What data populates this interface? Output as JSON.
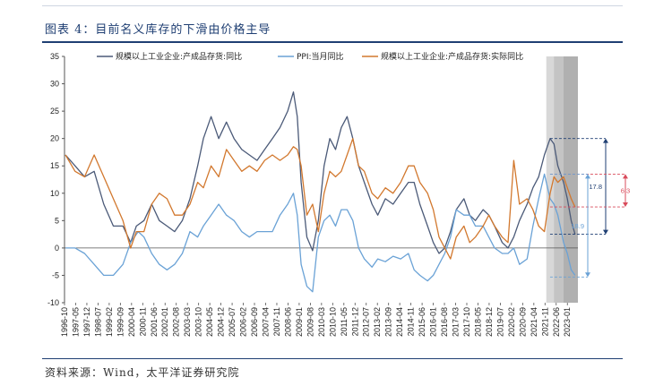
{
  "title": "图表 4：目前名义库存的下滑由价格主导",
  "source": "资料来源：Wind，太平洋证券研究院",
  "chart_data": {
    "type": "line",
    "ylim": [
      -10,
      35
    ],
    "yticks": [
      -10,
      -5,
      0,
      5,
      10,
      15,
      20,
      25,
      30,
      35
    ],
    "xticks": [
      "1996-10",
      "1997-05",
      "1997-12",
      "1998-07",
      "1999-02",
      "1999-09",
      "2000-04",
      "2000-11",
      "2001-06",
      "2002-01",
      "2002-08",
      "2003-03",
      "2003-10",
      "2004-05",
      "2004-12",
      "2005-07",
      "2006-02",
      "2006-09",
      "2007-04",
      "2007-11",
      "2008-06",
      "2009-01",
      "2009-08",
      "2010-03",
      "2010-10",
      "2011-05",
      "2011-12",
      "2012-07",
      "2013-02",
      "2013-09",
      "2014-04",
      "2014-11",
      "2015-06",
      "2016-01",
      "2016-08",
      "2017-03",
      "2017-10",
      "2018-05",
      "2018-12",
      "2019-07",
      "2020-02",
      "2020-09",
      "2021-04",
      "2021-11",
      "2022-06",
      "2023-01"
    ],
    "series": [
      {
        "name": "规模以上工业企业:产成品存货:同比",
        "color": "#4b5a78",
        "points": [
          [
            1996.8,
            17
          ],
          [
            1997.3,
            15
          ],
          [
            1997.8,
            13
          ],
          [
            1998.3,
            14
          ],
          [
            1998.8,
            8
          ],
          [
            1999.3,
            4
          ],
          [
            1999.8,
            4
          ],
          [
            2000.2,
            1
          ],
          [
            2000.5,
            4
          ],
          [
            2000.9,
            5
          ],
          [
            2001.3,
            8
          ],
          [
            2001.7,
            5
          ],
          [
            2002.1,
            4
          ],
          [
            2002.5,
            3
          ],
          [
            2002.9,
            5
          ],
          [
            2003.3,
            9
          ],
          [
            2003.7,
            15
          ],
          [
            2004.0,
            20
          ],
          [
            2004.4,
            24
          ],
          [
            2004.8,
            20
          ],
          [
            2005.2,
            23
          ],
          [
            2005.6,
            20
          ],
          [
            2006.0,
            18
          ],
          [
            2006.4,
            17
          ],
          [
            2006.8,
            16
          ],
          [
            2007.2,
            18
          ],
          [
            2007.6,
            20
          ],
          [
            2008.0,
            22
          ],
          [
            2008.4,
            25
          ],
          [
            2008.7,
            28.5
          ],
          [
            2008.9,
            24
          ],
          [
            2009.1,
            12
          ],
          [
            2009.4,
            2
          ],
          [
            2009.7,
            -0.5
          ],
          [
            2010.0,
            5
          ],
          [
            2010.3,
            15
          ],
          [
            2010.6,
            20
          ],
          [
            2010.9,
            18
          ],
          [
            2011.2,
            22
          ],
          [
            2011.5,
            24
          ],
          [
            2011.8,
            20
          ],
          [
            2012.1,
            15
          ],
          [
            2012.4,
            12
          ],
          [
            2012.8,
            8
          ],
          [
            2013.1,
            6
          ],
          [
            2013.5,
            9
          ],
          [
            2013.9,
            8
          ],
          [
            2014.3,
            10
          ],
          [
            2014.7,
            12
          ],
          [
            2015.0,
            12
          ],
          [
            2015.3,
            8
          ],
          [
            2015.7,
            4
          ],
          [
            2016.0,
            1
          ],
          [
            2016.3,
            -1
          ],
          [
            2016.6,
            0
          ],
          [
            2016.9,
            3
          ],
          [
            2017.2,
            7
          ],
          [
            2017.6,
            9
          ],
          [
            2017.9,
            6
          ],
          [
            2018.2,
            5
          ],
          [
            2018.6,
            7
          ],
          [
            2018.9,
            6
          ],
          [
            2019.2,
            4
          ],
          [
            2019.6,
            1
          ],
          [
            2019.9,
            0
          ],
          [
            2020.2,
            2
          ],
          [
            2020.5,
            5
          ],
          [
            2020.9,
            8
          ],
          [
            2021.2,
            11
          ],
          [
            2021.5,
            13
          ],
          [
            2021.8,
            17
          ],
          [
            2022.1,
            20
          ],
          [
            2022.3,
            19
          ],
          [
            2022.5,
            15
          ],
          [
            2022.8,
            12
          ],
          [
            2023.0,
            9
          ],
          [
            2023.2,
            5
          ],
          [
            2023.4,
            2.5
          ]
        ]
      },
      {
        "name": "PPI:当月同比",
        "color": "#6aa2d6",
        "points": [
          [
            1996.8,
            0
          ],
          [
            1997.3,
            0
          ],
          [
            1997.8,
            -1
          ],
          [
            1998.3,
            -3
          ],
          [
            1998.8,
            -5
          ],
          [
            1999.3,
            -5
          ],
          [
            1999.8,
            -3
          ],
          [
            2000.2,
            1
          ],
          [
            2000.6,
            3
          ],
          [
            2000.9,
            2
          ],
          [
            2001.3,
            -1
          ],
          [
            2001.7,
            -3
          ],
          [
            2002.1,
            -4
          ],
          [
            2002.5,
            -3
          ],
          [
            2002.9,
            -1
          ],
          [
            2003.3,
            3
          ],
          [
            2003.7,
            2
          ],
          [
            2004.0,
            4
          ],
          [
            2004.4,
            6
          ],
          [
            2004.8,
            8
          ],
          [
            2005.2,
            6
          ],
          [
            2005.6,
            5
          ],
          [
            2006.0,
            3
          ],
          [
            2006.4,
            2
          ],
          [
            2006.8,
            3
          ],
          [
            2007.2,
            3
          ],
          [
            2007.6,
            3
          ],
          [
            2008.0,
            6
          ],
          [
            2008.4,
            8
          ],
          [
            2008.7,
            10
          ],
          [
            2008.9,
            6
          ],
          [
            2009.1,
            -3
          ],
          [
            2009.4,
            -7
          ],
          [
            2009.7,
            -8
          ],
          [
            2010.0,
            2
          ],
          [
            2010.3,
            5
          ],
          [
            2010.6,
            6
          ],
          [
            2010.9,
            4
          ],
          [
            2011.2,
            7
          ],
          [
            2011.5,
            7
          ],
          [
            2011.8,
            5
          ],
          [
            2012.1,
            0
          ],
          [
            2012.4,
            -2
          ],
          [
            2012.8,
            -3.5
          ],
          [
            2013.1,
            -2
          ],
          [
            2013.5,
            -2.5
          ],
          [
            2013.9,
            -1.5
          ],
          [
            2014.3,
            -2
          ],
          [
            2014.7,
            -1
          ],
          [
            2015.0,
            -4
          ],
          [
            2015.3,
            -5
          ],
          [
            2015.7,
            -6
          ],
          [
            2016.0,
            -5
          ],
          [
            2016.3,
            -3
          ],
          [
            2016.6,
            -1
          ],
          [
            2016.9,
            2
          ],
          [
            2017.2,
            7
          ],
          [
            2017.6,
            6
          ],
          [
            2017.9,
            6
          ],
          [
            2018.2,
            4
          ],
          [
            2018.6,
            4
          ],
          [
            2018.9,
            2
          ],
          [
            2019.2,
            0
          ],
          [
            2019.6,
            -1
          ],
          [
            2019.9,
            -1
          ],
          [
            2020.2,
            0
          ],
          [
            2020.5,
            -3
          ],
          [
            2020.9,
            -2
          ],
          [
            2021.2,
            4
          ],
          [
            2021.5,
            9
          ],
          [
            2021.8,
            13.5
          ],
          [
            2022.1,
            9
          ],
          [
            2022.3,
            8
          ],
          [
            2022.5,
            6
          ],
          [
            2022.8,
            1
          ],
          [
            2023.0,
            -1
          ],
          [
            2023.2,
            -4
          ],
          [
            2023.4,
            -5
          ]
        ]
      },
      {
        "name": "规模以上工业企业:产成品存货:实际同比",
        "color": "#d2782e",
        "points": [
          [
            1996.8,
            17
          ],
          [
            1997.3,
            14
          ],
          [
            1997.8,
            13
          ],
          [
            1998.3,
            17
          ],
          [
            1998.8,
            13
          ],
          [
            1999.3,
            9
          ],
          [
            1999.8,
            5
          ],
          [
            2000.2,
            0
          ],
          [
            2000.5,
            3
          ],
          [
            2000.9,
            3
          ],
          [
            2001.3,
            8
          ],
          [
            2001.7,
            10
          ],
          [
            2002.1,
            9
          ],
          [
            2002.5,
            6
          ],
          [
            2002.9,
            6
          ],
          [
            2003.3,
            8
          ],
          [
            2003.7,
            12
          ],
          [
            2004.0,
            11
          ],
          [
            2004.4,
            15
          ],
          [
            2004.8,
            13
          ],
          [
            2005.2,
            18
          ],
          [
            2005.6,
            16
          ],
          [
            2006.0,
            14
          ],
          [
            2006.4,
            15
          ],
          [
            2006.8,
            14
          ],
          [
            2007.2,
            16
          ],
          [
            2007.6,
            17
          ],
          [
            2008.0,
            16
          ],
          [
            2008.4,
            17
          ],
          [
            2008.7,
            18.5
          ],
          [
            2008.9,
            18
          ],
          [
            2009.1,
            15
          ],
          [
            2009.4,
            6
          ],
          [
            2009.7,
            8
          ],
          [
            2010.0,
            3
          ],
          [
            2010.3,
            10
          ],
          [
            2010.6,
            14
          ],
          [
            2010.9,
            13
          ],
          [
            2011.2,
            14
          ],
          [
            2011.5,
            17
          ],
          [
            2011.8,
            20
          ],
          [
            2012.1,
            15
          ],
          [
            2012.4,
            14
          ],
          [
            2012.8,
            10
          ],
          [
            2013.1,
            9
          ],
          [
            2013.5,
            11
          ],
          [
            2013.9,
            10
          ],
          [
            2014.3,
            12
          ],
          [
            2014.7,
            15
          ],
          [
            2015.0,
            15
          ],
          [
            2015.3,
            12
          ],
          [
            2015.7,
            10
          ],
          [
            2016.0,
            7
          ],
          [
            2016.3,
            2
          ],
          [
            2016.6,
            0
          ],
          [
            2016.9,
            -2
          ],
          [
            2017.2,
            2
          ],
          [
            2017.6,
            4
          ],
          [
            2017.9,
            1
          ],
          [
            2018.2,
            2
          ],
          [
            2018.6,
            4
          ],
          [
            2018.9,
            6
          ],
          [
            2019.2,
            4
          ],
          [
            2019.6,
            2
          ],
          [
            2019.9,
            1
          ],
          [
            2020.2,
            16
          ],
          [
            2020.5,
            8
          ],
          [
            2020.9,
            9
          ],
          [
            2021.2,
            7
          ],
          [
            2021.5,
            4
          ],
          [
            2021.8,
            3
          ],
          [
            2022.1,
            10
          ],
          [
            2022.3,
            13
          ],
          [
            2022.5,
            12
          ],
          [
            2022.8,
            13
          ],
          [
            2023.0,
            11
          ],
          [
            2023.2,
            9
          ],
          [
            2023.4,
            7.5
          ]
        ]
      }
    ],
    "shaded_regions": [
      {
        "start": 2021.9,
        "end": 2023.55,
        "color": "#d8d8d8"
      },
      {
        "start": 2022.3,
        "end": 2023.55,
        "color": "#c4c4c4"
      },
      {
        "start": 2022.8,
        "end": 2023.55,
        "color": "#b0b0b0"
      }
    ],
    "annotations": [
      {
        "label": "17.8",
        "color": "#1f3f73",
        "from": 20,
        "to": 2.5
      },
      {
        "label": "6.3",
        "color": "#d94b5b",
        "from": 13.5,
        "to": 7.5
      },
      {
        "label": "18.9",
        "color": "#6aa2d6",
        "from": 13.5,
        "to": -5.3
      }
    ]
  }
}
